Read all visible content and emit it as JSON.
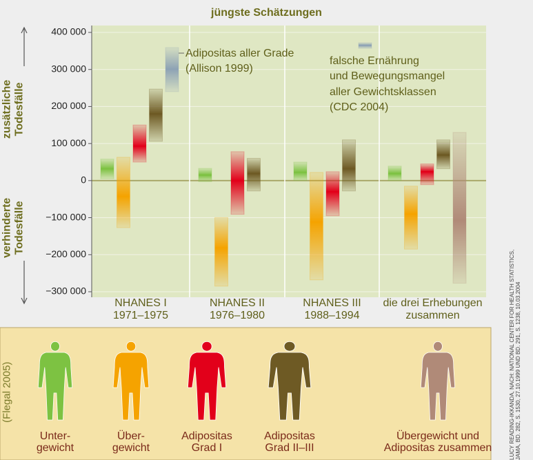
{
  "chart_data": {
    "type": "range-bar",
    "title": "jüngste Schätzungen",
    "y_label_top": "zusätzliche\nTodesfälle",
    "y_label_bottom": "verhinderte\nTodesfälle",
    "source_label": "(Flegal 2005)",
    "credit": "LUCY READING-IKKANDA, NACH: NATIONAL CENTER FOR HEALTH STATISTICS,\nJAMA, BD. 282, S. 1530, 27.10.1999 UND BD. 291, S. 1238, 10.03.2004",
    "categories": [
      "NHANES I\n1971–1975",
      "NHANES II\n1976–1980",
      "NHANES III\n1988–1994",
      "die drei Erhebungen\nzusammen"
    ],
    "ylim": [
      -300000,
      400000
    ],
    "yticks": [
      {
        "value": -300000,
        "label": "−300 000"
      },
      {
        "value": -200000,
        "label": "−200 000"
      },
      {
        "value": -100000,
        "label": "−100 000"
      },
      0,
      {
        "value": 100000,
        "label": "100 000"
      },
      {
        "value": 200000,
        "label": "200 000"
      },
      {
        "value": 300000,
        "label": "300 000"
      },
      {
        "value": 400000,
        "label": "400 000"
      }
    ],
    "grid": true,
    "series": [
      {
        "name": "Unter-\ngewicht",
        "color": "#7dc242",
        "values": [
          32000,
          15000,
          22000,
          19000
        ],
        "lows": [
          5000,
          -3000,
          0,
          0
        ],
        "highs": [
          58000,
          33000,
          50000,
          39000
        ]
      },
      {
        "name": "Über-\ngewicht",
        "color": "#f5a300",
        "values": [
          -43000,
          -182000,
          -112000,
          -90000
        ],
        "lows": [
          -127000,
          -285000,
          -268000,
          -185000
        ],
        "highs": [
          63000,
          -100000,
          22000,
          -15000
        ]
      },
      {
        "name": "Adipositas\nGrad I",
        "color": "#e2001a",
        "values": [
          93000,
          0,
          -30000,
          24000
        ],
        "lows": [
          50000,
          -91000,
          -95000,
          -11000
        ],
        "highs": [
          150000,
          78000,
          24000,
          45000
        ]
      },
      {
        "name": "Adipositas\nGrad II–III",
        "color": "#6e5a24",
        "values": [
          180000,
          19000,
          32000,
          69000
        ],
        "lows": [
          106000,
          -28000,
          -28000,
          32000
        ],
        "highs": [
          247000,
          60000,
          110000,
          110000
        ]
      },
      {
        "name": "Übergewicht und\nAdipositas zusammen",
        "color": "#b08a78",
        "values": [
          null,
          null,
          null,
          -108000
        ],
        "lows": [
          null,
          null,
          null,
          -277000
        ],
        "highs": [
          null,
          null,
          null,
          130000
        ]
      }
    ],
    "annotations": [
      {
        "text": "Adipositas aller Grade\n(Allison 1999)",
        "color": "#8ea3b5",
        "values": [
          301000,
          null,
          null,
          null
        ],
        "lows": [
          240000,
          null,
          null,
          null
        ],
        "highs": [
          359000,
          null,
          null,
          null
        ]
      },
      {
        "text": "falsche Ernährung\nund Bewegungsmangel\naller Gewichtsklassen\n(CDC 2004)",
        "color": "#8ea3b5",
        "values": [
          null,
          null,
          365000,
          null
        ],
        "lows": [
          null,
          null,
          357000,
          null
        ],
        "highs": [
          null,
          null,
          372000,
          null
        ]
      }
    ]
  }
}
